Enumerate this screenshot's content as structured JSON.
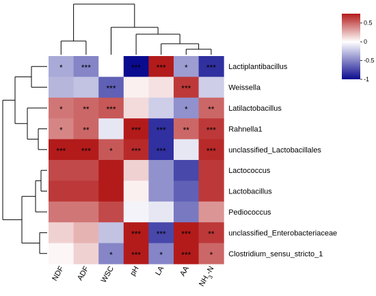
{
  "chart_data": {
    "type": "heatmap",
    "columns": [
      "NDF",
      "ADF",
      "WSC",
      "pH",
      "LA",
      "AA",
      "NH3-N"
    ],
    "rows": [
      "Lactiplantibacillus",
      "Weissella",
      "Latilactobacillus",
      "Rahnella1",
      "unclassified_Lactobacillales",
      "Lactococcus",
      "Lactobacillus",
      "Pediococcus",
      "unclassified_Enterobacteriaceae",
      "Clostridium_sensu_stricto_1"
    ],
    "values": [
      [
        -0.35,
        -0.5,
        0.0,
        -1.0,
        0.9,
        -0.4,
        -0.85
      ],
      [
        -0.3,
        -0.25,
        -0.65,
        0.05,
        0.1,
        0.65,
        -0.2
      ],
      [
        0.45,
        0.5,
        0.55,
        0.12,
        -0.2,
        -0.45,
        0.5
      ],
      [
        0.4,
        0.5,
        -0.1,
        0.8,
        -0.85,
        0.5,
        0.65
      ],
      [
        0.85,
        0.8,
        0.55,
        0.7,
        -0.85,
        -0.1,
        0.7
      ],
      [
        0.6,
        0.6,
        0.75,
        0.15,
        -0.45,
        -0.75,
        0.65
      ],
      [
        0.65,
        0.65,
        0.75,
        0.05,
        -0.45,
        -0.65,
        0.65
      ],
      [
        0.45,
        0.45,
        0.6,
        -0.05,
        -0.1,
        -0.55,
        0.35
      ],
      [
        0.15,
        0.25,
        -0.25,
        0.8,
        -0.75,
        0.75,
        0.65
      ],
      [
        0.03,
        0.15,
        -0.5,
        0.8,
        -0.5,
        0.8,
        0.5
      ]
    ],
    "significance": [
      [
        "*",
        "***",
        "",
        "***",
        "***",
        "*",
        "***"
      ],
      [
        "",
        "",
        "***",
        "",
        "",
        "***",
        ""
      ],
      [
        "*",
        "**",
        "***",
        "",
        "",
        "*",
        "**"
      ],
      [
        "*",
        "**",
        "",
        "***",
        "***",
        "**",
        "***"
      ],
      [
        "***",
        "***",
        "*",
        "***",
        "***",
        "",
        "***"
      ],
      [
        "",
        "",
        "",
        "",
        "",
        "",
        ""
      ],
      [
        "",
        "",
        "",
        "",
        "",
        "",
        ""
      ],
      [
        "",
        "",
        "",
        "",
        "",
        "",
        ""
      ],
      [
        "",
        "",
        "",
        "***",
        "***",
        "***",
        "**"
      ],
      [
        "",
        "",
        "*",
        "***",
        "*",
        "***",
        "*"
      ]
    ],
    "color_scale": {
      "min": -1,
      "max": 0.75,
      "low_color": "#0b0b8f",
      "mid_color": "#ffffff",
      "high_color": "#b31b1b",
      "ticks": [
        "0.5",
        "0",
        "-0.5",
        "-1"
      ],
      "tick_values": [
        0.5,
        0,
        -0.5,
        -1
      ]
    },
    "col_dendrogram_order": [
      "NDF",
      "ADF",
      "WSC",
      "pH",
      "LA",
      "AA",
      "NH3-N"
    ],
    "row_dendrogram_order": [
      "Lactiplantibacillus",
      "Weissella",
      "Latilactobacillus",
      "Rahnella1",
      "unclassified_Lactobacillales",
      "Lactococcus",
      "Lactobacillus",
      "Pediococcus",
      "unclassified_Enterobacteriaceae",
      "Clostridium_sensu_stricto_1"
    ],
    "title": "",
    "xlabel": "",
    "ylabel": ""
  }
}
